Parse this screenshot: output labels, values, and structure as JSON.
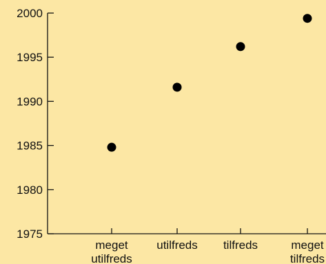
{
  "chart_data": {
    "type": "scatter",
    "title": "",
    "xlabel": "",
    "ylabel": "",
    "categories": [
      [
        "meget",
        "utilfreds"
      ],
      [
        "utilfreds"
      ],
      [
        "tilfreds"
      ],
      [
        "meget",
        "tilfreds"
      ]
    ],
    "values": [
      1984.8,
      1991.6,
      1996.2,
      1999.4
    ],
    "ylim": [
      1975,
      2000
    ],
    "yticks": [
      1975,
      1980,
      1985,
      1990,
      1995,
      2000
    ],
    "grid": false,
    "legend": "none",
    "colors": {
      "background": "#fce7a4",
      "axis": "#111111",
      "point": "#000000"
    }
  }
}
